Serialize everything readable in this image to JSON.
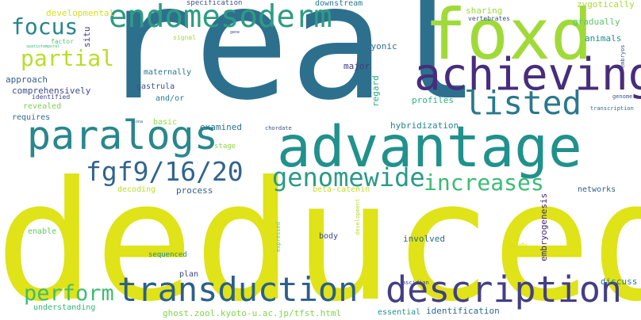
{
  "words": [
    {
      "text": "real",
      "color": "#2d708e"
    },
    {
      "text": "deduced",
      "color": "#dfe318"
    },
    {
      "text": "advantage",
      "color": "#21918c"
    },
    {
      "text": "foxd",
      "color": "#a0da39"
    },
    {
      "text": "achieving",
      "color": "#472d7b"
    },
    {
      "text": "endomesoderm",
      "color": "#2e9c84"
    },
    {
      "text": "transduction",
      "color": "#2c5f8a"
    },
    {
      "text": "description",
      "color": "#433e85"
    },
    {
      "text": "listed",
      "color": "#29788e"
    },
    {
      "text": "paralogs",
      "color": "#29878e"
    },
    {
      "text": "fgf9/16/20",
      "color": "#31648d"
    },
    {
      "text": "genomewide",
      "color": "#2a9a88"
    },
    {
      "text": "increases",
      "color": "#3bbb75"
    },
    {
      "text": "partial",
      "color": "#b8de29"
    },
    {
      "text": "focus",
      "color": "#27858e"
    },
    {
      "text": "perform",
      "color": "#3fbc73"
    },
    {
      "text": "developmental",
      "color": "#d5e21a"
    },
    {
      "text": "factor",
      "color": "#56c667"
    },
    {
      "text": "situ",
      "color": "#44397f"
    },
    {
      "text": "approach",
      "color": "#365c8d"
    },
    {
      "text": "comprehensively",
      "color": "#3e4a89"
    },
    {
      "text": "identified",
      "color": "#414487"
    },
    {
      "text": "revealed",
      "color": "#7ad151"
    },
    {
      "text": "requires",
      "color": "#2f6c8e"
    },
    {
      "text": "maternally",
      "color": "#2a788e"
    },
    {
      "text": "gastrula",
      "color": "#3c508b"
    },
    {
      "text": "and/or",
      "color": "#27808e"
    },
    {
      "text": "specification",
      "color": "#3b528b"
    },
    {
      "text": "signal",
      "color": "#9dd93b"
    },
    {
      "text": "downstream",
      "color": "#2a7b8e"
    },
    {
      "text": "embryonic",
      "color": "#2e6e8e"
    },
    {
      "text": "major",
      "color": "#453781"
    },
    {
      "text": "regard",
      "color": "#25ac82"
    },
    {
      "text": "sharing",
      "color": "#9bd93c"
    },
    {
      "text": "zygotically",
      "color": "#a8db34"
    },
    {
      "text": "vertebrates",
      "color": "#3a538b"
    },
    {
      "text": "gradually",
      "color": "#58c765"
    },
    {
      "text": "animals",
      "color": "#238a8d"
    },
    {
      "text": "profiles",
      "color": "#2db27d"
    },
    {
      "text": "embryos",
      "color": "#3a548c"
    },
    {
      "text": "genome",
      "color": "#39568c"
    },
    {
      "text": "transcription",
      "color": "#2f6b8e"
    },
    {
      "text": "hybridization",
      "color": "#24868e"
    },
    {
      "text": "basic",
      "color": "#90d743"
    },
    {
      "text": "examined",
      "color": "#2d718e"
    },
    {
      "text": "chordate",
      "color": "#3d4e8a"
    },
    {
      "text": "stage",
      "color": "#8fd744"
    },
    {
      "text": "decoding",
      "color": "#bade28"
    },
    {
      "text": "process",
      "color": "#355e8d"
    },
    {
      "text": "beta-catenin",
      "color": "#c0df25"
    },
    {
      "text": "networks",
      "color": "#33628d"
    },
    {
      "text": "embryogenesis",
      "color": "#482878"
    },
    {
      "text": "enable",
      "color": "#5ec962"
    },
    {
      "text": "body",
      "color": "#3e4989"
    },
    {
      "text": "expressed",
      "color": "#60ca60"
    },
    {
      "text": "development",
      "color": "#b5de2b"
    },
    {
      "text": "involved",
      "color": "#31678e"
    },
    {
      "text": "sequenced",
      "color": "#228b8d"
    },
    {
      "text": "study",
      "color": "#d8e219"
    },
    {
      "text": "plan",
      "color": "#3f4788"
    },
    {
      "text": "discuss",
      "color": "#2b758e"
    },
    {
      "text": "ascidian",
      "color": "#404588"
    },
    {
      "text": "understanding",
      "color": "#32b67a"
    },
    {
      "text": "ghost.zool.kyoto-u.ac.jp/tfst.html",
      "color": "#84d44b"
    },
    {
      "text": "essential",
      "color": "#20928c"
    },
    {
      "text": "identification",
      "color": "#2f6b8e"
    },
    {
      "text": "gene",
      "color": "#3e4a89"
    },
    {
      "text": "ciona",
      "color": "#34618d"
    },
    {
      "text": "spatiotemporal",
      "color": "#3aba76"
    }
  ]
}
